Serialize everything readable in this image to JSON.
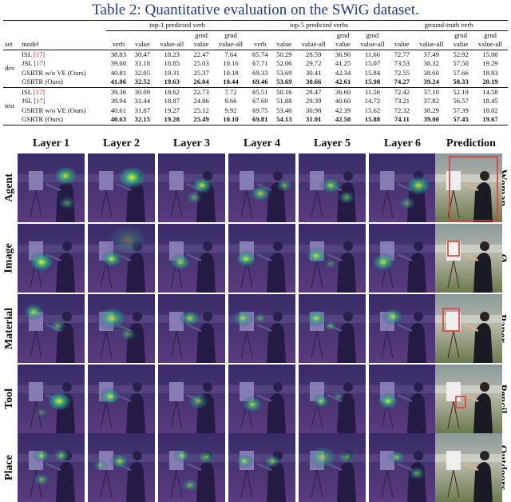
{
  "caption": "Table 2:  Quantitative evaluation on the SWiG dataset.",
  "table": {
    "groups": [
      "top-1 predicted verb",
      "top-5 predicted verbs",
      "ground-truth verb"
    ],
    "grnd": "grnd",
    "col_set": "set",
    "col_model": "model",
    "cols": [
      "verb",
      "value",
      "value-all",
      "value",
      "value-all",
      "verb",
      "value",
      "value-all",
      "value",
      "value-all",
      "value",
      "value-all",
      "value",
      "value-all"
    ],
    "sets": [
      {
        "name": "dev",
        "rows": [
          {
            "model": "ISL",
            "ref": "[17]",
            "vals": [
              "38.83",
              "30.47",
              "18.23",
              "22.47",
              "7.64",
              "65.74",
              "50.29",
              "28.59",
              "36.90",
              "11.66",
              "72.77",
              "37.49",
              "52.92",
              "15.00"
            ],
            "bold": false
          },
          {
            "model": "JSL",
            "ref": "[17]",
            "vals": [
              "39.60",
              "31.18",
              "18.85",
              "25.03",
              "10.16",
              "67.71",
              "52.06",
              "29.72",
              "41.25",
              "15.07",
              "73.53",
              "38.32",
              "57.50",
              "19.29"
            ],
            "bold": false
          },
          {
            "model": "GSRTR w/o VE (Ours)",
            "ref": "",
            "vals": [
              "40.81",
              "32.05",
              "19.31",
              "25.37",
              "10.18",
              "69.33",
              "53.69",
              "30.41",
              "42.34",
              "15.84",
              "72.55",
              "38.60",
              "57.66",
              "18.93"
            ],
            "bold": false
          },
          {
            "model": "GSRTR (Ours)",
            "ref": "",
            "vals": [
              "41.06",
              "32.52",
              "19.63",
              "26.04",
              "10.44",
              "69.46",
              "53.69",
              "30.66",
              "42.61",
              "15.98",
              "74.27",
              "39.24",
              "58.33",
              "20.19"
            ],
            "bold": true
          }
        ]
      },
      {
        "name": "test",
        "rows": [
          {
            "model": "ISL",
            "ref": "[17]",
            "vals": [
              "39.36",
              "30.09",
              "18.62",
              "22.73",
              "7.72",
              "65.51",
              "50.16",
              "28.47",
              "36.60",
              "11.56",
              "72.42",
              "37.10",
              "52.19",
              "14.58"
            ],
            "bold": false
          },
          {
            "model": "JSL",
            "ref": "[17]",
            "vals": [
              "39.94",
              "31.44",
              "18.87",
              "24.86",
              "9.66",
              "67.60",
              "51.88",
              "29.39",
              "40.60",
              "14.72",
              "73.21",
              "37.82",
              "56.57",
              "18.45"
            ],
            "bold": false
          },
          {
            "model": "GSRTR w/o VE (Ours)",
            "ref": "",
            "vals": [
              "40.61",
              "31.87",
              "19.27",
              "25.12",
              "9.92",
              "69.75",
              "53.46",
              "30.98",
              "42.39",
              "15.62",
              "72.32",
              "38.29",
              "57.39",
              "18.02"
            ],
            "bold": false
          },
          {
            "model": "GSRTR (Ours)",
            "ref": "",
            "vals": [
              "40.63",
              "32.15",
              "19.28",
              "25.49",
              "10.10",
              "69.81",
              "54.13",
              "31.01",
              "42.50",
              "15.88",
              "74.11",
              "39.00",
              "57.45",
              "19.67"
            ],
            "bold": true
          }
        ]
      }
    ]
  },
  "figure": {
    "columns": [
      "Layer 1",
      "Layer 2",
      "Layer 3",
      "Layer 4",
      "Layer 5",
      "Layer 6",
      "Prediction"
    ],
    "rows": [
      "Agent",
      "Image",
      "Material",
      "Tool",
      "Place"
    ],
    "predictions": [
      "Woman",
      "Ø",
      "Paper",
      "Pencil",
      "Outdoors"
    ],
    "heatmap_colors": [
      "#3b0f70",
      "#2c7f8e",
      "#35b779",
      "#fde725"
    ],
    "box_color": "#e53935"
  }
}
